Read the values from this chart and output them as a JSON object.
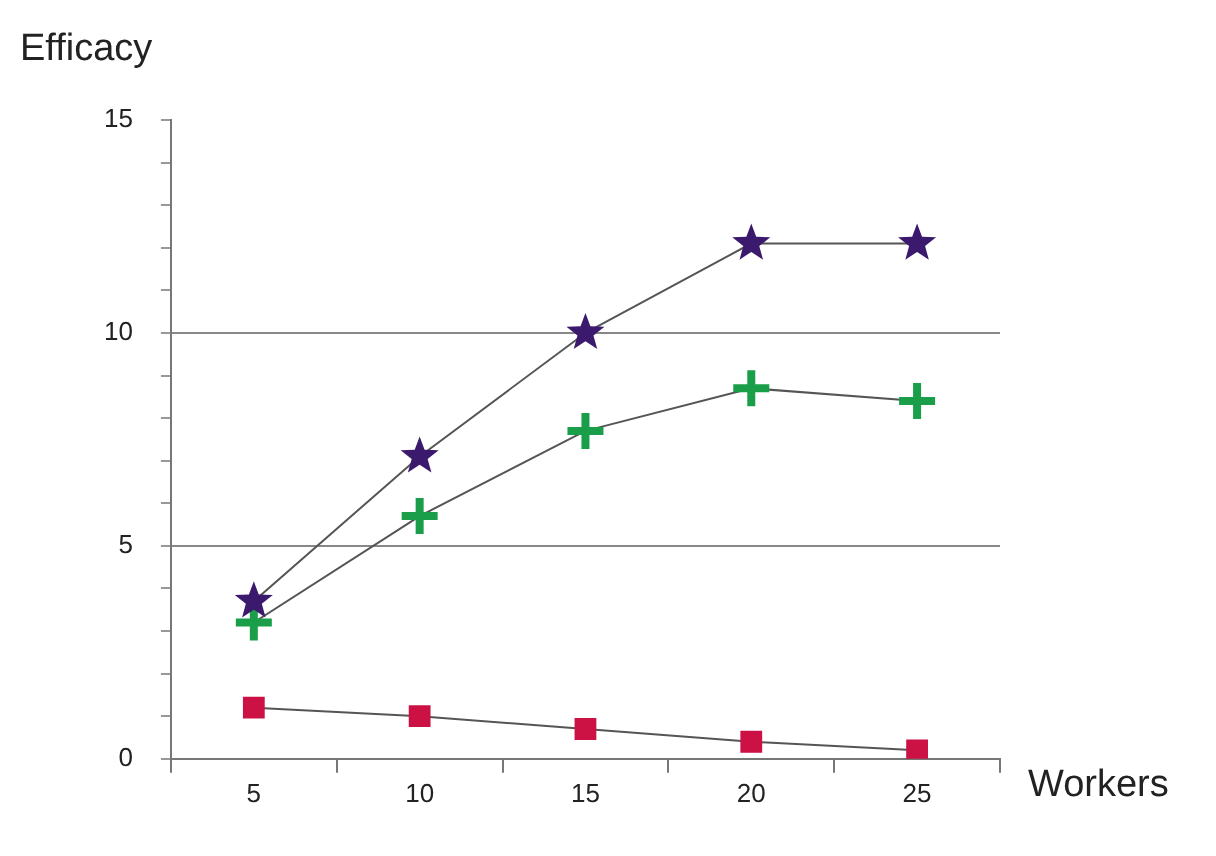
{
  "chart_data": {
    "type": "line",
    "xlabel": "Workers",
    "ylabel": "Efficacy",
    "x": [
      5,
      10,
      15,
      20,
      25
    ],
    "series": [
      {
        "color": "#3b1a6e",
        "marker": "star",
        "values": [
          3.7,
          7.1,
          10.0,
          12.1,
          12.1
        ]
      },
      {
        "color": "#1a9e4a",
        "marker": "cross",
        "values": [
          3.2,
          5.7,
          7.7,
          8.7,
          8.4
        ]
      },
      {
        "color": "#cc1144",
        "marker": "square",
        "values": [
          1.2,
          1.0,
          0.7,
          0.4,
          0.2
        ]
      }
    ],
    "xlim": [
      2.5,
      27.5
    ],
    "xticks": [
      {
        "value": 2.5,
        "label": null
      },
      5,
      {
        "value": 7.5,
        "label": null
      },
      10,
      {
        "value": 12.5,
        "label": null
      },
      15,
      {
        "value": 17.5,
        "label": null
      },
      20,
      {
        "value": 22.5,
        "label": null
      },
      25,
      {
        "value": 27.5,
        "label": null
      }
    ],
    "ylim": [
      0,
      15
    ],
    "yticks": [
      0,
      {
        "value": 1,
        "label": null
      },
      {
        "value": 2,
        "label": null
      },
      {
        "value": 3,
        "label": null
      },
      {
        "value": 4,
        "label": null
      },
      5,
      {
        "value": 6,
        "label": null
      },
      {
        "value": 7,
        "label": null
      },
      {
        "value": 8,
        "label": null
      },
      {
        "value": 9,
        "label": null
      },
      10,
      {
        "value": 11,
        "label": null
      },
      {
        "value": 12,
        "label": null
      },
      {
        "value": 13,
        "label": null
      },
      {
        "value": 14,
        "label": null
      },
      15
    ],
    "grid": "y",
    "legend": false
  }
}
